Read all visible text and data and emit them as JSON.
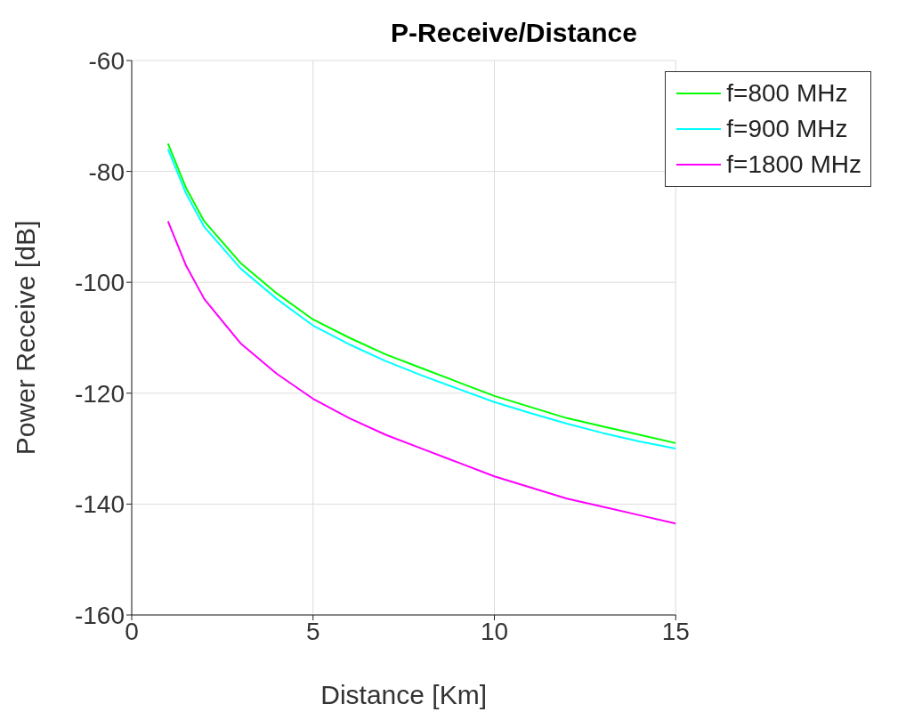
{
  "chart_data": {
    "type": "line",
    "title": "P-Receive/Distance",
    "xlabel": "Distance [Km]",
    "ylabel": "Power Receive [dB]",
    "x": [
      1,
      1.5,
      2,
      3,
      4,
      5,
      6,
      7,
      8,
      9,
      10,
      11,
      12,
      13,
      14,
      15
    ],
    "series": [
      {
        "name": "f=800 MHz",
        "color": "#00ff00",
        "values": [
          -75,
          -83,
          -89,
          -96.5,
          -102,
          -106.7,
          -110,
          -113,
          -115.5,
          -118,
          -120.5,
          -122.5,
          -124.5,
          -126,
          -127.5,
          -129
        ]
      },
      {
        "name": "f=900 MHz",
        "color": "#00ffff",
        "values": [
          -76,
          -84,
          -90,
          -97.5,
          -103,
          -107.8,
          -111.2,
          -114.2,
          -116.8,
          -119.2,
          -121.6,
          -123.6,
          -125.5,
          -127.2,
          -128.7,
          -130
        ]
      },
      {
        "name": "f=1800 MHz",
        "color": "#ff00ff",
        "values": [
          -89,
          -97,
          -103,
          -111,
          -116.5,
          -121,
          -124.5,
          -127.5,
          -130,
          -132.5,
          -135,
          -137,
          -139,
          -140.5,
          -142,
          -143.5
        ]
      }
    ],
    "xlim": [
      0,
      15
    ],
    "xticks": [
      0,
      5,
      10,
      15
    ],
    "ylim": [
      -160,
      -60
    ],
    "yticks": [
      -160,
      -140,
      -120,
      -100,
      -80,
      -60
    ],
    "grid": true,
    "legend": "top right"
  }
}
